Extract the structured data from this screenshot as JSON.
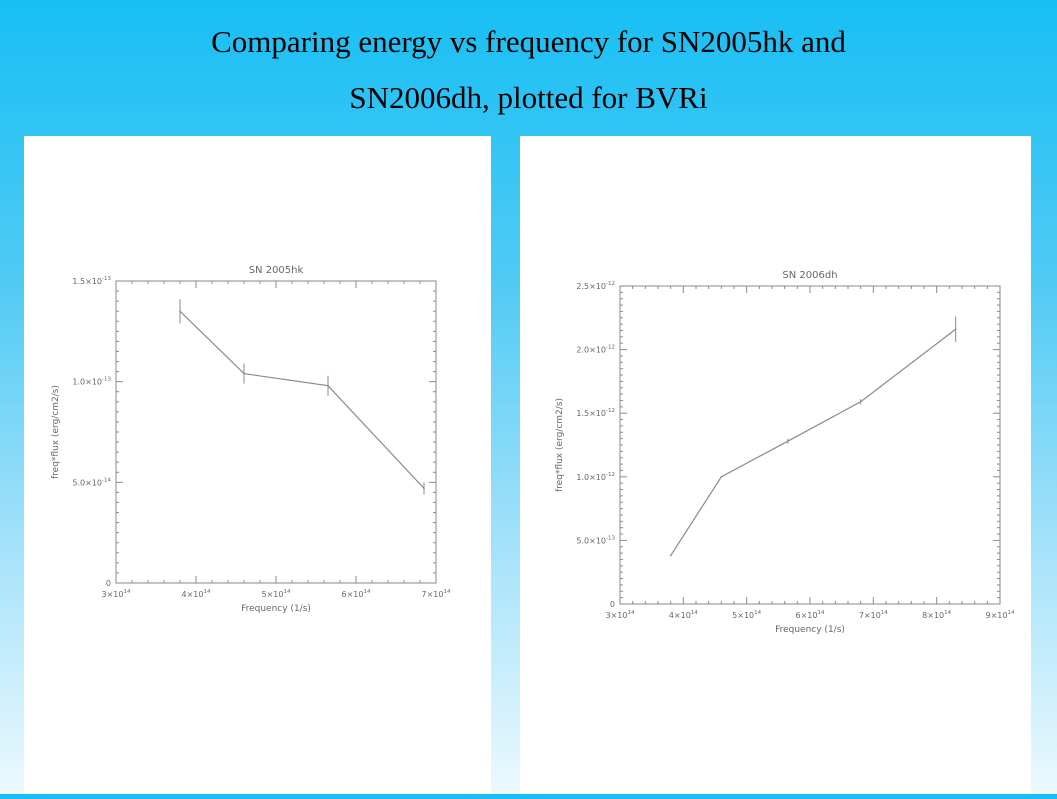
{
  "slide": {
    "title_line1": "Comparing energy vs frequency for SN2005hk and",
    "title_line2": "SN2006dh, plotted for BVRi"
  },
  "chart_data": [
    {
      "type": "line",
      "title": "SN 2005hk",
      "xlabel": "Frequency (1/s)",
      "ylabel": "freq*flux (erg/cm2/s)",
      "xlim": [
        300000000000000.0,
        700000000000000.0
      ],
      "ylim": [
        0,
        1.5e-13
      ],
      "xticks": [
        {
          "v": 300000000000000.0,
          "m": "3",
          "e": "14"
        },
        {
          "v": 400000000000000.0,
          "m": "4",
          "e": "14"
        },
        {
          "v": 500000000000000.0,
          "m": "5",
          "e": "14"
        },
        {
          "v": 600000000000000.0,
          "m": "6",
          "e": "14"
        },
        {
          "v": 700000000000000.0,
          "m": "7",
          "e": "14"
        }
      ],
      "yticks": [
        {
          "v": 0,
          "m": "0",
          "e": ""
        },
        {
          "v": 5e-14,
          "m": "5.0",
          "e": "-14"
        },
        {
          "v": 1e-13,
          "m": "1.0",
          "e": "-13"
        },
        {
          "v": 1.5e-13,
          "m": "1.5",
          "e": "-13"
        }
      ],
      "series": [
        {
          "x": [
            380000000000000.0,
            460000000000000.0,
            565000000000000.0,
            685000000000000.0
          ],
          "y": [
            1.35e-13,
            1.04e-13,
            9.8e-14,
            4.7e-14
          ],
          "err": [
            6e-15,
            5e-15,
            5e-15,
            3e-15
          ]
        }
      ]
    },
    {
      "type": "line",
      "title": "SN 2006dh",
      "xlabel": "Frequency (1/s)",
      "ylabel": "freq*flux (erg/cm2/s)",
      "xlim": [
        300000000000000.0,
        900000000000000.0
      ],
      "ylim": [
        0,
        2.5e-12
      ],
      "xticks": [
        {
          "v": 300000000000000.0,
          "m": "3",
          "e": "14"
        },
        {
          "v": 400000000000000.0,
          "m": "4",
          "e": "14"
        },
        {
          "v": 500000000000000.0,
          "m": "5",
          "e": "14"
        },
        {
          "v": 600000000000000.0,
          "m": "6",
          "e": "14"
        },
        {
          "v": 700000000000000.0,
          "m": "7",
          "e": "14"
        },
        {
          "v": 800000000000000.0,
          "m": "8",
          "e": "14"
        },
        {
          "v": 900000000000000.0,
          "m": "9",
          "e": "14"
        }
      ],
      "yticks": [
        {
          "v": 0,
          "m": "0",
          "e": ""
        },
        {
          "v": 5e-13,
          "m": "5.0",
          "e": "-13"
        },
        {
          "v": 1e-12,
          "m": "1.0",
          "e": "-12"
        },
        {
          "v": 1.5e-12,
          "m": "1.5",
          "e": "-12"
        },
        {
          "v": 2e-12,
          "m": "2.0",
          "e": "-12"
        },
        {
          "v": 2.5e-12,
          "m": "2.5",
          "e": "-12"
        }
      ],
      "series": [
        {
          "x": [
            380000000000000.0,
            460000000000000.0,
            565000000000000.0,
            680000000000000.0,
            830000000000000.0
          ],
          "y": [
            3.8e-13,
            1e-12,
            1.28e-12,
            1.59e-12,
            2.16e-12
          ],
          "err": [
            0,
            0,
            2e-14,
            2e-14,
            1e-13
          ]
        }
      ]
    }
  ]
}
